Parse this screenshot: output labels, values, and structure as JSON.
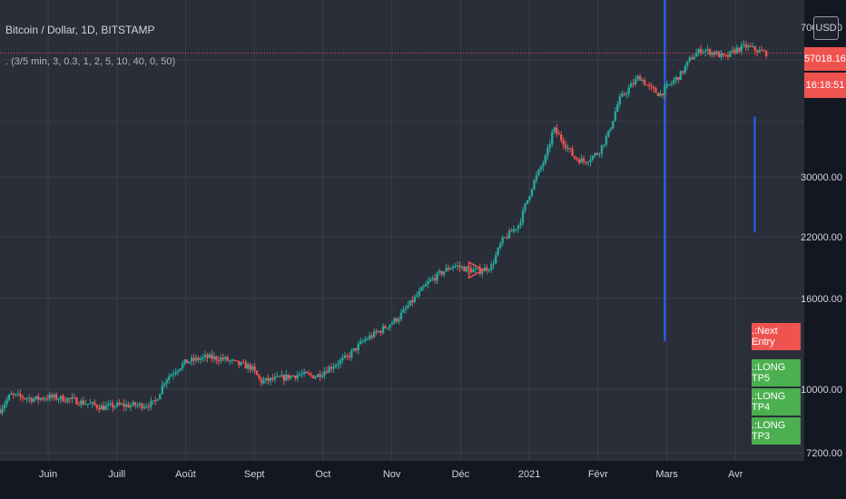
{
  "header": {
    "symbol_title": "Bitcoin / Dollar, 1D, BITSTAMP",
    "indicator_params": ". (3/5 min, 3, 0.3, 1, 2, 5, 10, 40, 0, 50)"
  },
  "price_scale": {
    "currency": "USD",
    "top_label": "70000.00",
    "current_price": "57018.16",
    "countdown": "16:18:51"
  },
  "markers": [
    {
      "text": ".:Next Entry",
      "color": "#ef5350"
    },
    {
      "text": ".:LONG TP5",
      "color": "#4caf50"
    },
    {
      "text": ".:LONG TP4",
      "color": "#4caf50"
    },
    {
      "text": ".:LONG TP3",
      "color": "#4caf50"
    }
  ],
  "colors": {
    "background": "#2a2e39",
    "scale_background": "#131722",
    "grid": "#3a3f4b",
    "up": "#26a69a",
    "down": "#ef5350",
    "vline": "#2962ff",
    "price_line": "#ef5350"
  },
  "chart_data": {
    "type": "candlestick",
    "title": "Bitcoin / Dollar, 1D, BITSTAMP",
    "y_scale": "log",
    "ylim": [
      6900,
      75000
    ],
    "y_ticks": [
      {
        "value": 30000,
        "label": "30000.00"
      },
      {
        "value": 22000,
        "label": "22000.00"
      },
      {
        "value": 16000,
        "label": "16000.00"
      },
      {
        "value": 10000,
        "label": "10000.00"
      },
      {
        "value": 7200,
        "label": "7200.00"
      }
    ],
    "x_ticks": [
      {
        "month": 5,
        "label": "Juin"
      },
      {
        "month": 6,
        "label": "Juill"
      },
      {
        "month": 7,
        "label": "Août"
      },
      {
        "month": 8,
        "label": "Sept"
      },
      {
        "month": 9,
        "label": "Oct"
      },
      {
        "month": 10,
        "label": "Nov"
      },
      {
        "month": 11,
        "label": "Déc"
      },
      {
        "month": 12,
        "label": "2021"
      },
      {
        "month": 13,
        "label": "Févr"
      },
      {
        "month": 14,
        "label": "Mars"
      },
      {
        "month": 15,
        "label": "Avr"
      }
    ],
    "xlim_months": [
      4.3,
      16.0
    ],
    "close_anchors": [
      [
        4.3,
        9000
      ],
      [
        4.45,
        9700
      ],
      [
        4.8,
        9500
      ],
      [
        5.0,
        9600
      ],
      [
        5.3,
        9500
      ],
      [
        5.55,
        9300
      ],
      [
        5.8,
        9100
      ],
      [
        6.0,
        9200
      ],
      [
        6.35,
        9200
      ],
      [
        6.55,
        9300
      ],
      [
        6.7,
        10500
      ],
      [
        6.9,
        11200
      ],
      [
        7.0,
        11500
      ],
      [
        7.3,
        11800
      ],
      [
        7.55,
        11700
      ],
      [
        7.75,
        11400
      ],
      [
        7.95,
        11200
      ],
      [
        8.1,
        10400
      ],
      [
        8.4,
        10600
      ],
      [
        8.65,
        10800
      ],
      [
        8.9,
        10700
      ],
      [
        9.1,
        11200
      ],
      [
        9.35,
        11800
      ],
      [
        9.6,
        12900
      ],
      [
        9.85,
        13600
      ],
      [
        10.1,
        14500
      ],
      [
        10.3,
        15800
      ],
      [
        10.55,
        17500
      ],
      [
        10.75,
        18400
      ],
      [
        10.9,
        19000
      ],
      [
        11.05,
        18700
      ],
      [
        11.25,
        18400
      ],
      [
        11.45,
        18900
      ],
      [
        11.6,
        21500
      ],
      [
        11.85,
        23500
      ],
      [
        12.05,
        28900
      ],
      [
        12.25,
        33500
      ],
      [
        12.35,
        38500
      ],
      [
        12.5,
        36000
      ],
      [
        12.65,
        33200
      ],
      [
        12.8,
        32500
      ],
      [
        13.0,
        34000
      ],
      [
        13.15,
        37500
      ],
      [
        13.3,
        44500
      ],
      [
        13.45,
        47500
      ],
      [
        13.6,
        50500
      ],
      [
        13.75,
        47500
      ],
      [
        13.9,
        46000
      ],
      [
        14.05,
        48500
      ],
      [
        14.2,
        51000
      ],
      [
        14.35,
        55500
      ],
      [
        14.5,
        58000
      ],
      [
        14.7,
        57000
      ],
      [
        14.85,
        55500
      ],
      [
        15.0,
        58000
      ],
      [
        15.15,
        59000
      ],
      [
        15.35,
        57500
      ],
      [
        15.45,
        57018
      ]
    ],
    "event_lines": [
      {
        "month": 13.97,
        "from": 75000,
        "to": 12800
      },
      {
        "month": 15.28,
        "from": 41000,
        "to": 22500
      }
    ],
    "reference_line": {
      "value": 57018.16
    },
    "signal_triangle": {
      "month": 11.2,
      "low": 17800,
      "high": 19300
    }
  }
}
